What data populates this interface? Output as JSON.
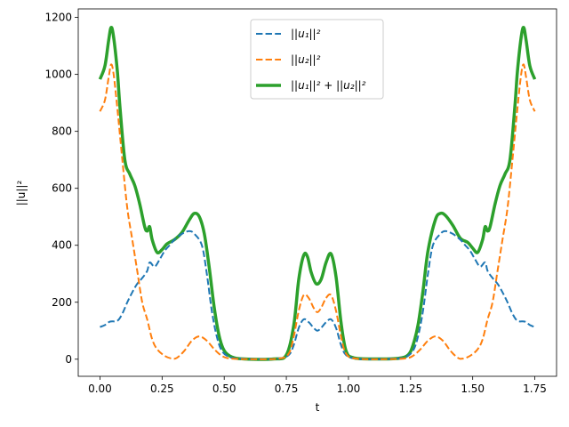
{
  "chart_data": {
    "type": "line",
    "title": "",
    "xlabel": "t",
    "ylabel": "||u||²",
    "xlim": [
      -0.0875,
      1.8375
    ],
    "ylim": [
      -60,
      1230
    ],
    "xticks": [
      0.0,
      0.25,
      0.5,
      0.75,
      1.0,
      1.25,
      1.5,
      1.75
    ],
    "xtick_labels": [
      "0.00",
      "0.25",
      "0.50",
      "0.75",
      "1.00",
      "1.25",
      "1.50",
      "1.75"
    ],
    "yticks": [
      0,
      200,
      400,
      600,
      800,
      1000,
      1200
    ],
    "ytick_labels": [
      "0",
      "200",
      "400",
      "600",
      "800",
      "1000",
      "1200"
    ],
    "grid": false,
    "legend_position": "top-center",
    "series": [
      {
        "name": "||u₁||²",
        "color": "#1f77b4",
        "style": "dashed",
        "width": 2,
        "points": [
          [
            0.0,
            113
          ],
          [
            0.02,
            120
          ],
          [
            0.04,
            132
          ],
          [
            0.07,
            135
          ],
          [
            0.09,
            160
          ],
          [
            0.11,
            200
          ],
          [
            0.13,
            235
          ],
          [
            0.15,
            265
          ],
          [
            0.17,
            285
          ],
          [
            0.19,
            310
          ],
          [
            0.2,
            340
          ],
          [
            0.22,
            325
          ],
          [
            0.24,
            350
          ],
          [
            0.26,
            380
          ],
          [
            0.28,
            400
          ],
          [
            0.3,
            420
          ],
          [
            0.33,
            440
          ],
          [
            0.36,
            450
          ],
          [
            0.38,
            440
          ],
          [
            0.41,
            400
          ],
          [
            0.43,
            300
          ],
          [
            0.45,
            170
          ],
          [
            0.47,
            80
          ],
          [
            0.49,
            30
          ],
          [
            0.52,
            8
          ],
          [
            0.56,
            2
          ],
          [
            0.65,
            0
          ],
          [
            0.72,
            2
          ],
          [
            0.76,
            15
          ],
          [
            0.78,
            50
          ],
          [
            0.8,
            110
          ],
          [
            0.82,
            140
          ],
          [
            0.84,
            130
          ],
          [
            0.86,
            110
          ],
          [
            0.875,
            100
          ],
          [
            0.89,
            110
          ],
          [
            0.91,
            130
          ],
          [
            0.93,
            140
          ],
          [
            0.95,
            110
          ],
          [
            0.97,
            50
          ],
          [
            0.99,
            15
          ],
          [
            1.03,
            2
          ],
          [
            1.1,
            0
          ],
          [
            1.19,
            2
          ],
          [
            1.23,
            8
          ],
          [
            1.26,
            30
          ],
          [
            1.28,
            80
          ],
          [
            1.3,
            170
          ],
          [
            1.32,
            300
          ],
          [
            1.34,
            400
          ],
          [
            1.37,
            440
          ],
          [
            1.39,
            450
          ],
          [
            1.42,
            440
          ],
          [
            1.45,
            420
          ],
          [
            1.47,
            400
          ],
          [
            1.49,
            380
          ],
          [
            1.51,
            350
          ],
          [
            1.53,
            325
          ],
          [
            1.55,
            340
          ],
          [
            1.56,
            310
          ],
          [
            1.58,
            285
          ],
          [
            1.6,
            265
          ],
          [
            1.62,
            235
          ],
          [
            1.64,
            200
          ],
          [
            1.66,
            160
          ],
          [
            1.68,
            135
          ],
          [
            1.71,
            132
          ],
          [
            1.73,
            120
          ],
          [
            1.75,
            113
          ]
        ]
      },
      {
        "name": "||u₂||²",
        "color": "#ff7f0e",
        "style": "dashed",
        "width": 2,
        "points": [
          [
            0.0,
            870
          ],
          [
            0.02,
            910
          ],
          [
            0.035,
            990
          ],
          [
            0.045,
            1035
          ],
          [
            0.055,
            1000
          ],
          [
            0.07,
            880
          ],
          [
            0.09,
            700
          ],
          [
            0.11,
            530
          ],
          [
            0.13,
            420
          ],
          [
            0.15,
            310
          ],
          [
            0.17,
            200
          ],
          [
            0.19,
            140
          ],
          [
            0.21,
            70
          ],
          [
            0.23,
            35
          ],
          [
            0.26,
            12
          ],
          [
            0.29,
            2
          ],
          [
            0.31,
            5
          ],
          [
            0.34,
            30
          ],
          [
            0.37,
            65
          ],
          [
            0.4,
            80
          ],
          [
            0.43,
            65
          ],
          [
            0.46,
            35
          ],
          [
            0.49,
            12
          ],
          [
            0.52,
            3
          ],
          [
            0.6,
            0
          ],
          [
            0.72,
            2
          ],
          [
            0.76,
            20
          ],
          [
            0.78,
            80
          ],
          [
            0.8,
            170
          ],
          [
            0.82,
            225
          ],
          [
            0.84,
            215
          ],
          [
            0.86,
            180
          ],
          [
            0.875,
            165
          ],
          [
            0.89,
            180
          ],
          [
            0.91,
            215
          ],
          [
            0.93,
            225
          ],
          [
            0.95,
            170
          ],
          [
            0.97,
            80
          ],
          [
            0.99,
            20
          ],
          [
            1.03,
            2
          ],
          [
            1.15,
            0
          ],
          [
            1.23,
            3
          ],
          [
            1.26,
            12
          ],
          [
            1.29,
            35
          ],
          [
            1.32,
            65
          ],
          [
            1.35,
            80
          ],
          [
            1.38,
            65
          ],
          [
            1.41,
            30
          ],
          [
            1.44,
            5
          ],
          [
            1.46,
            2
          ],
          [
            1.49,
            12
          ],
          [
            1.52,
            35
          ],
          [
            1.54,
            70
          ],
          [
            1.56,
            140
          ],
          [
            1.58,
            200
          ],
          [
            1.6,
            310
          ],
          [
            1.62,
            420
          ],
          [
            1.64,
            530
          ],
          [
            1.66,
            700
          ],
          [
            1.68,
            880
          ],
          [
            1.695,
            1000
          ],
          [
            1.705,
            1035
          ],
          [
            1.715,
            990
          ],
          [
            1.73,
            910
          ],
          [
            1.75,
            870
          ]
        ]
      },
      {
        "name": "||u₁||² + ||u₂||²",
        "color": "#2ca02c",
        "style": "solid",
        "width": 3.5,
        "points": [
          [
            0.0,
            983
          ],
          [
            0.02,
            1030
          ],
          [
            0.035,
            1120
          ],
          [
            0.045,
            1165
          ],
          [
            0.055,
            1130
          ],
          [
            0.07,
            1010
          ],
          [
            0.08,
            890
          ],
          [
            0.1,
            700
          ],
          [
            0.12,
            650
          ],
          [
            0.14,
            610
          ],
          [
            0.16,
            545
          ],
          [
            0.18,
            465
          ],
          [
            0.19,
            450
          ],
          [
            0.2,
            465
          ],
          [
            0.21,
            420
          ],
          [
            0.23,
            375
          ],
          [
            0.25,
            385
          ],
          [
            0.27,
            405
          ],
          [
            0.3,
            420
          ],
          [
            0.33,
            445
          ],
          [
            0.36,
            490
          ],
          [
            0.38,
            512
          ],
          [
            0.4,
            500
          ],
          [
            0.42,
            440
          ],
          [
            0.44,
            320
          ],
          [
            0.46,
            180
          ],
          [
            0.48,
            80
          ],
          [
            0.5,
            30
          ],
          [
            0.53,
            8
          ],
          [
            0.58,
            1
          ],
          [
            0.7,
            1
          ],
          [
            0.75,
            15
          ],
          [
            0.78,
            120
          ],
          [
            0.8,
            280
          ],
          [
            0.82,
            365
          ],
          [
            0.835,
            360
          ],
          [
            0.85,
            305
          ],
          [
            0.87,
            265
          ],
          [
            0.89,
            280
          ],
          [
            0.91,
            340
          ],
          [
            0.93,
            370
          ],
          [
            0.95,
            290
          ],
          [
            0.97,
            130
          ],
          [
            0.99,
            30
          ],
          [
            1.02,
            5
          ],
          [
            1.1,
            1
          ],
          [
            1.2,
            3
          ],
          [
            1.24,
            15
          ],
          [
            1.26,
            50
          ],
          [
            1.28,
            120
          ],
          [
            1.3,
            240
          ],
          [
            1.32,
            380
          ],
          [
            1.35,
            490
          ],
          [
            1.37,
            512
          ],
          [
            1.39,
            505
          ],
          [
            1.42,
            470
          ],
          [
            1.45,
            425
          ],
          [
            1.48,
            410
          ],
          [
            1.5,
            390
          ],
          [
            1.52,
            375
          ],
          [
            1.54,
            420
          ],
          [
            1.55,
            465
          ],
          [
            1.56,
            450
          ],
          [
            1.57,
            465
          ],
          [
            1.59,
            545
          ],
          [
            1.61,
            610
          ],
          [
            1.63,
            650
          ],
          [
            1.65,
            700
          ],
          [
            1.67,
            890
          ],
          [
            1.68,
            1010
          ],
          [
            1.695,
            1130
          ],
          [
            1.705,
            1165
          ],
          [
            1.715,
            1120
          ],
          [
            1.73,
            1030
          ],
          [
            1.75,
            983
          ]
        ]
      }
    ]
  }
}
